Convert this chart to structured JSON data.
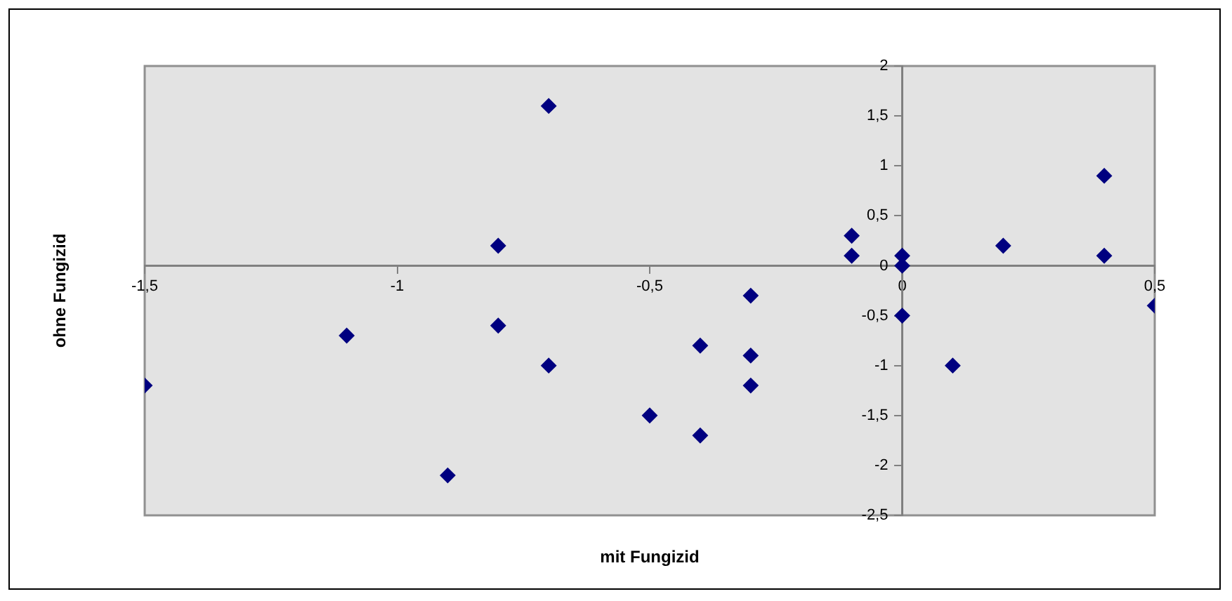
{
  "chart_data": {
    "type": "scatter",
    "xlabel": "mit Fungizid",
    "ylabel": "ohne Fungizid",
    "x": [
      -1.5,
      -1.1,
      -0.9,
      -0.8,
      -0.8,
      -0.7,
      -0.7,
      -0.5,
      -0.4,
      -0.4,
      -0.3,
      -0.3,
      -0.3,
      -0.1,
      -0.1,
      0,
      0,
      0,
      0.1,
      0.2,
      0.4,
      0.4,
      0.5
    ],
    "series": [
      {
        "color": "#000080",
        "values": [
          -1.2,
          -0.7,
          -2.1,
          0.2,
          -0.6,
          1.6,
          -1.0,
          -1.5,
          -0.8,
          -1.7,
          -0.3,
          -0.9,
          -1.2,
          0.3,
          0.1,
          0.1,
          0,
          -0.5,
          -1.0,
          0.2,
          0.9,
          0.1,
          -0.4
        ]
      }
    ],
    "xlim": [
      -1.5,
      0.5
    ],
    "ylim": [
      -2.5,
      2
    ],
    "xticks": [
      {
        "value": -1.5,
        "label": "-1,5"
      },
      -1,
      {
        "value": -0.5,
        "label": "-0,5"
      },
      0,
      {
        "value": 0.5,
        "label": "0,5"
      }
    ],
    "yticks": [
      {
        "value": -2.5,
        "label": "-2,5"
      },
      -2,
      {
        "value": -1.5,
        "label": "-1,5"
      },
      -1,
      {
        "value": -0.5,
        "label": "-0,5"
      },
      0,
      {
        "value": 0.5,
        "label": "0,5"
      },
      1,
      {
        "value": 1.5,
        "label": "1,5"
      },
      2
    ],
    "marker": "diamond",
    "grid": false,
    "legend": false
  }
}
